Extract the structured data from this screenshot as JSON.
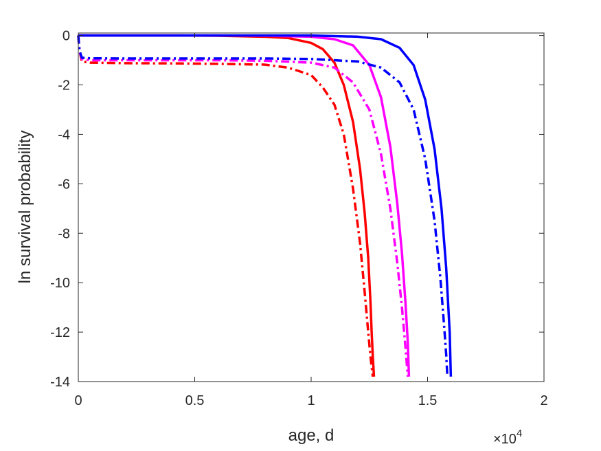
{
  "chart_data": {
    "type": "line",
    "xlabel": "age, d",
    "ylabel": "ln survival probability",
    "x_exponent_label": {
      "base": "×10",
      "power": "4"
    },
    "xlim": [
      0,
      20000
    ],
    "ylim": [
      -14,
      0.1
    ],
    "xticks": [
      0,
      5000,
      10000,
      15000,
      20000
    ],
    "xtick_labels": [
      "0",
      "0.5",
      "1",
      "1.5",
      "2"
    ],
    "yticks": [
      0,
      -2,
      -4,
      -6,
      -8,
      -10,
      -12,
      -14
    ],
    "ytick_labels": [
      "0",
      "-2",
      "-4",
      "-6",
      "-8",
      "-10",
      "-12",
      "-14"
    ],
    "grid": false,
    "series": [
      {
        "color": "#ff0000",
        "style": "solid",
        "x": [
          0,
          2000,
          4000,
          6000,
          8000,
          9000,
          10000,
          10500,
          11000,
          11400,
          11800,
          12100,
          12300,
          12450,
          12550,
          12600,
          12650,
          12700
        ],
        "y": [
          0,
          0,
          0,
          -0.01,
          -0.05,
          -0.1,
          -0.3,
          -0.55,
          -1.1,
          -2.0,
          -3.5,
          -5.4,
          -7.2,
          -9.0,
          -10.8,
          -12.0,
          -13.0,
          -13.8
        ]
      },
      {
        "color": "#ff0000",
        "style": "dashdot",
        "x": [
          0,
          50,
          150,
          500,
          2000,
          4000,
          6000,
          8000,
          9000,
          10000,
          10500,
          11000,
          11400,
          11800,
          12100,
          12300,
          12450,
          12550,
          12650
        ],
        "y": [
          0,
          -0.6,
          -1.05,
          -1.1,
          -1.12,
          -1.13,
          -1.15,
          -1.18,
          -1.3,
          -1.6,
          -2.1,
          -2.8,
          -4.0,
          -6.2,
          -8.4,
          -10.4,
          -12.0,
          -13.0,
          -13.8
        ]
      },
      {
        "color": "#ff00ff",
        "style": "solid",
        "x": [
          0,
          2000,
          4000,
          6000,
          8000,
          10000,
          11000,
          11800,
          12500,
          13000,
          13400,
          13700,
          13900,
          14050,
          14150,
          14200
        ],
        "y": [
          0,
          0,
          0,
          0,
          -0.01,
          -0.05,
          -0.15,
          -0.4,
          -1.2,
          -2.5,
          -4.5,
          -6.8,
          -8.8,
          -10.8,
          -12.4,
          -13.8
        ]
      },
      {
        "color": "#ff00ff",
        "style": "dashdot",
        "x": [
          0,
          50,
          150,
          500,
          2000,
          4000,
          6000,
          8000,
          10000,
          11000,
          11800,
          12500,
          13000,
          13400,
          13700,
          13900,
          14050,
          14150
        ],
        "y": [
          0,
          -0.6,
          -0.95,
          -1.0,
          -1.0,
          -1.0,
          -1.0,
          -1.02,
          -1.1,
          -1.3,
          -1.9,
          -3.0,
          -4.8,
          -7.0,
          -9.2,
          -11.0,
          -12.6,
          -13.8
        ]
      },
      {
        "color": "#0000ff",
        "style": "solid",
        "x": [
          0,
          2000,
          4000,
          6000,
          8000,
          10000,
          12000,
          13000,
          13800,
          14400,
          14900,
          15300,
          15600,
          15800,
          15950,
          16000
        ],
        "y": [
          0,
          0,
          0,
          0,
          0,
          0,
          -0.05,
          -0.15,
          -0.5,
          -1.2,
          -2.6,
          -4.6,
          -7.0,
          -9.4,
          -12.0,
          -13.8
        ]
      },
      {
        "color": "#0000ff",
        "style": "dashdot",
        "x": [
          0,
          50,
          150,
          500,
          2000,
          4000,
          6000,
          8000,
          10000,
          12000,
          13000,
          13800,
          14400,
          14900,
          15300,
          15550,
          15700,
          15800,
          15850
        ],
        "y": [
          0,
          -0.6,
          -0.9,
          -0.92,
          -0.93,
          -0.93,
          -0.93,
          -0.93,
          -0.95,
          -1.05,
          -1.3,
          -1.9,
          -3.0,
          -5.0,
          -7.5,
          -9.8,
          -11.6,
          -12.9,
          -13.8
        ]
      }
    ]
  }
}
